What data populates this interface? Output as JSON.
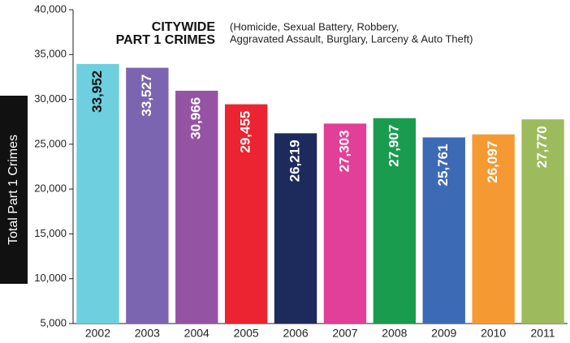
{
  "chart_data": {
    "type": "bar",
    "title": [
      "CITYWIDE",
      "PART 1 CRIMES"
    ],
    "subtitle": [
      "(Homicide, Sexual Battery, Robbery,",
      "Aggravated Assault, Burglary, Larceny & Auto Theft)"
    ],
    "y_label": "Total Part 1 Crimes",
    "categories": [
      "2002",
      "2003",
      "2004",
      "2005",
      "2006",
      "2007",
      "2008",
      "2009",
      "2010",
      "2011"
    ],
    "values": [
      33952,
      33527,
      30966,
      29455,
      26219,
      27303,
      27907,
      25761,
      26097,
      27770
    ],
    "value_labels": [
      "33,952",
      "33,527",
      "30,966",
      "29,455",
      "26,219",
      "27,303",
      "27,907",
      "25,761",
      "26,097",
      "27,770"
    ],
    "colors": [
      "#6ecfdf",
      "#7b65b0",
      "#9553a3",
      "#ec2330",
      "#1d2a5c",
      "#e23f98",
      "#1a9c4f",
      "#3d6ab4",
      "#f59a33",
      "#9dbb5c"
    ],
    "value_label_colors": [
      "#111111",
      "#ffffff",
      "#ffffff",
      "#ffffff",
      "#ffffff",
      "#ffffff",
      "#ffffff",
      "#ffffff",
      "#ffffff",
      "#ffffff"
    ],
    "ylim": [
      5000,
      40000
    ],
    "yticks": [
      {
        "value": 5000,
        "label": "5,000"
      },
      {
        "value": 10000,
        "label": "10,000"
      },
      {
        "value": 15000,
        "label": "15,000"
      },
      {
        "value": 20000,
        "label": "20,000"
      },
      {
        "value": 25000,
        "label": "25,000"
      },
      {
        "value": 30000,
        "label": "30,000"
      },
      {
        "value": 35000,
        "label": "35,000"
      },
      {
        "value": 40000,
        "label": "40,000"
      }
    ],
    "grid": false
  }
}
